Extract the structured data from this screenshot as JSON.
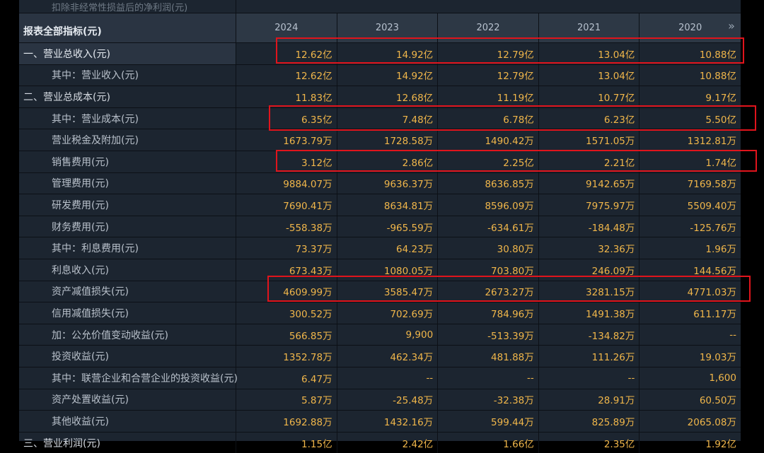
{
  "top_label": "扣除非经常性损益后的净利润(元)",
  "header": {
    "title": "报表全部指标(元)",
    "years": [
      "2024",
      "2023",
      "2022",
      "2021",
      "2020"
    ],
    "more_icon": "double-chevron-right-icon"
  },
  "rows": [
    {
      "label": "一、营业总收入(元)",
      "values": [
        "12.62亿",
        "14.92亿",
        "12.79亿",
        "13.04亿",
        "10.88亿"
      ]
    },
    {
      "label": "其中：营业收入(元)",
      "values": [
        "12.62亿",
        "14.92亿",
        "12.79亿",
        "13.04亿",
        "10.88亿"
      ]
    },
    {
      "label": "二、营业总成本(元)",
      "values": [
        "11.83亿",
        "12.68亿",
        "11.19亿",
        "10.77亿",
        "9.17亿"
      ]
    },
    {
      "label": "其中：营业成本(元)",
      "values": [
        "6.35亿",
        "7.48亿",
        "6.78亿",
        "6.23亿",
        "5.50亿"
      ]
    },
    {
      "label": "营业税金及附加(元)",
      "values": [
        "1673.79万",
        "1728.58万",
        "1490.42万",
        "1571.05万",
        "1312.81万"
      ]
    },
    {
      "label": "销售费用(元)",
      "values": [
        "3.12亿",
        "2.86亿",
        "2.25亿",
        "2.21亿",
        "1.74亿"
      ]
    },
    {
      "label": "管理费用(元)",
      "values": [
        "9884.07万",
        "9636.37万",
        "8636.85万",
        "9142.65万",
        "7169.58万"
      ]
    },
    {
      "label": "研发费用(元)",
      "values": [
        "7690.41万",
        "8634.81万",
        "8596.09万",
        "7975.97万",
        "5509.40万"
      ]
    },
    {
      "label": "财务费用(元)",
      "values": [
        "-558.38万",
        "-965.59万",
        "-634.61万",
        "-184.48万",
        "-125.76万"
      ]
    },
    {
      "label": "其中：利息费用(元)",
      "values": [
        "73.37万",
        "64.23万",
        "30.80万",
        "32.36万",
        "1.96万"
      ]
    },
    {
      "label": "利息收入(元)",
      "values": [
        "673.43万",
        "1080.05万",
        "703.80万",
        "246.09万",
        "144.56万"
      ]
    },
    {
      "label": "资产减值损失(元)",
      "values": [
        "4609.99万",
        "3585.47万",
        "2673.27万",
        "3281.15万",
        "4771.03万"
      ]
    },
    {
      "label": "信用减值损失(元)",
      "values": [
        "300.52万",
        "702.69万",
        "784.96万",
        "1491.38万",
        "611.17万"
      ]
    },
    {
      "label": "加：公允价值变动收益(元)",
      "values": [
        "566.85万",
        "9,900",
        "-513.39万",
        "-134.82万",
        "--"
      ]
    },
    {
      "label": "投资收益(元)",
      "values": [
        "1352.78万",
        "462.34万",
        "481.88万",
        "111.26万",
        "19.03万"
      ]
    },
    {
      "label": "其中：联营企业和合营企业的投资收益(元)",
      "values": [
        "6.47万",
        "--",
        "--",
        "--",
        "1,600"
      ]
    },
    {
      "label": "资产处置收益(元)",
      "values": [
        "5.87万",
        "-25.48万",
        "-32.38万",
        "28.91万",
        "60.50万"
      ]
    },
    {
      "label": "其他收益(元)",
      "values": [
        "1692.88万",
        "1432.16万",
        "599.44万",
        "825.89万",
        "2065.08万"
      ]
    },
    {
      "label": "三、营业利润(元)",
      "values": [
        "1.15亿",
        "2.42亿",
        "1.66亿",
        "2.35亿",
        "1.92亿"
      ]
    }
  ],
  "highlight_color": "#e0141c"
}
